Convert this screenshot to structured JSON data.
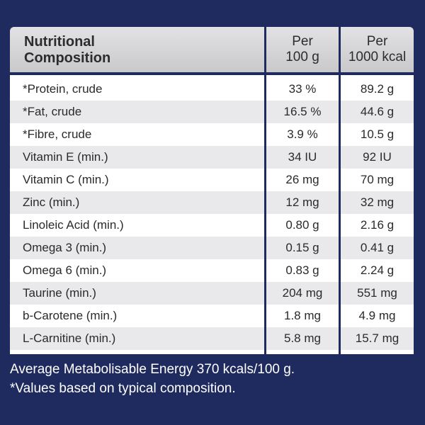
{
  "header": {
    "name": "Nutritional\nComposition",
    "col1": "Per\n100 g",
    "col2": "Per\n1000 kcal"
  },
  "rows": [
    {
      "name": "*Protein, crude",
      "per100g": "33 %",
      "per1000kcal": "89.2 g"
    },
    {
      "name": "*Fat, crude",
      "per100g": "16.5 %",
      "per1000kcal": "44.6 g"
    },
    {
      "name": "*Fibre, crude",
      "per100g": "3.9 %",
      "per1000kcal": "10.5 g"
    },
    {
      "name": "Vitamin E (min.)",
      "per100g": "34 IU",
      "per1000kcal": "92 IU"
    },
    {
      "name": "Vitamin C (min.)",
      "per100g": "26 mg",
      "per1000kcal": "70 mg"
    },
    {
      "name": "Zinc (min.)",
      "per100g": "12 mg",
      "per1000kcal": "32 mg"
    },
    {
      "name": "Linoleic Acid (min.)",
      "per100g": "0.80 g",
      "per1000kcal": "2.16 g"
    },
    {
      "name": "Omega 3 (min.)",
      "per100g": "0.15 g",
      "per1000kcal": "0.41 g"
    },
    {
      "name": "Omega 6 (min.)",
      "per100g": "0.83 g",
      "per1000kcal": "2.24 g"
    },
    {
      "name": "Taurine (min.)",
      "per100g": "204 mg",
      "per1000kcal": "551 mg"
    },
    {
      "name": "b-Carotene (min.)",
      "per100g": "1.8 mg",
      "per1000kcal": "4.9 mg"
    },
    {
      "name": "L-Carnitine (min.)",
      "per100g": "5.8 mg",
      "per1000kcal": "15.7 mg"
    }
  ],
  "footer": {
    "energy": "Average Metabolisable Energy 370 kcals/100 g.",
    "note": "*Values based on typical composition."
  },
  "colors": {
    "background": "#1f2b5e",
    "header": "#d6d6d8",
    "row_alt": "#e9e9eb",
    "row": "#ffffff"
  }
}
